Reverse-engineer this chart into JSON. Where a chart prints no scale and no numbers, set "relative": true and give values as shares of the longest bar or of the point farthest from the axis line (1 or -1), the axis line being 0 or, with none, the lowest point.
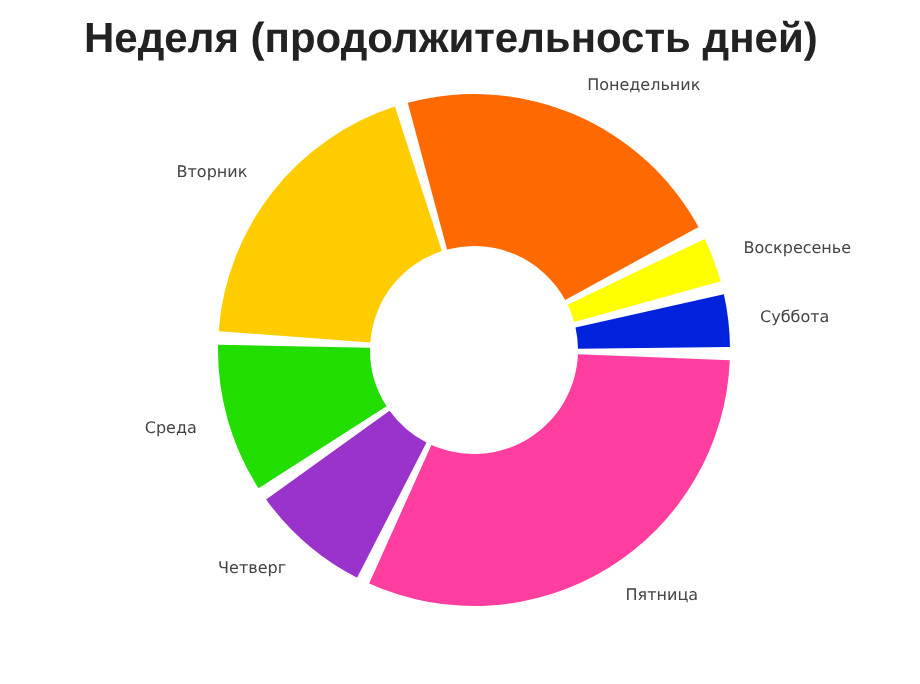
{
  "chart_data": {
    "type": "donut",
    "title": "Неделя (продолжительность дней)",
    "relative": true,
    "categories": [
      "Понедельник",
      "Воскресенье",
      "Суббота",
      "Пятница",
      "Четверг",
      "Среда",
      "Вторник"
    ],
    "values": [
      22.5,
      3,
      3.5,
      33,
      8,
      10,
      20
    ],
    "colors": [
      "#ff6a00",
      "#ffff00",
      "#0022dd",
      "#ff3ea0",
      "#9933cc",
      "#22dd00",
      "#ffcc00"
    ],
    "legend": false
  }
}
